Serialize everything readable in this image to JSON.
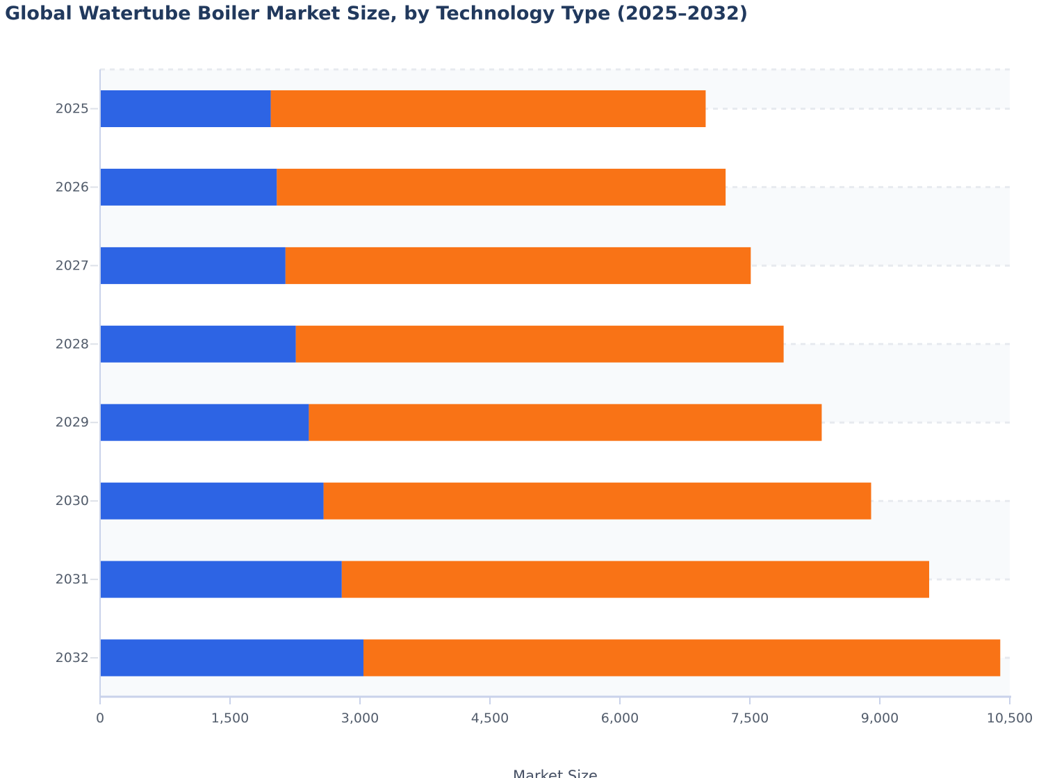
{
  "title": "Global Watertube Boiler Market Size, by Technology Type (2025–2032)",
  "chart_data": {
    "type": "bar",
    "orientation": "horizontal",
    "stacked": true,
    "title": "Global Watertube Boiler Market Size, by Technology Type (2025–2032)",
    "xlabel": "Market Size",
    "ylabel": "",
    "categories": [
      "2025",
      "2026",
      "2027",
      "2028",
      "2029",
      "2030",
      "2031",
      "2032"
    ],
    "series": [
      {
        "name": "blue-series",
        "color": "#2d64e4",
        "values": [
          1970,
          2040,
          2140,
          2260,
          2410,
          2580,
          2790,
          3040
        ]
      },
      {
        "name": "orange-series",
        "color": "#f97316",
        "values": [
          5020,
          5180,
          5370,
          5630,
          5920,
          6320,
          6780,
          7350
        ]
      }
    ],
    "totals": [
      6990,
      7220,
      7510,
      7890,
      8330,
      8900,
      9570,
      10390
    ],
    "xlim": [
      0,
      10500
    ],
    "x_tick_values": [
      0,
      1500,
      3000,
      4500,
      6000,
      7500,
      9000,
      10500
    ],
    "x_tick_labels": [
      "0",
      "1,500",
      "3,000",
      "4,500",
      "6,000",
      "7,500",
      "9,000",
      "10,500"
    ],
    "legend_visible": false,
    "grid": "horizontal dashed gridlines at category centers, alternating row bands",
    "style": {
      "band_color": "#f8fafc",
      "band_alt_color": "#ffffff",
      "gridline_color": "#e7eaef",
      "axis_line_color": "#c9d2ea",
      "y_tick_color": "#dde1e8",
      "tick_label_color": "#525c6b",
      "axis_label_color": "#454f63",
      "title_color": "#21395d"
    }
  }
}
